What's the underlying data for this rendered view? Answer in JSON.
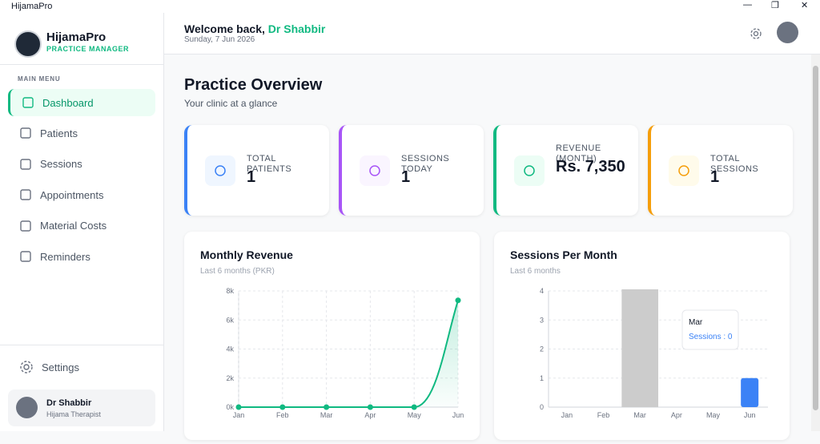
{
  "window": {
    "title": "HijamaPro"
  },
  "sidebar": {
    "brand": "HijamaPro",
    "tagline": "PRACTICE MANAGER",
    "menu_label": "MAIN MENU",
    "menu": [
      "Dashboard",
      "Patients",
      "Sessions",
      "Appointments",
      "Material Costs",
      "Reminders"
    ],
    "settings": "Settings",
    "user": {
      "name": "Dr Shabbir",
      "role": "Hijama Therapist"
    }
  },
  "header": {
    "greeting": "Welcome back,",
    "name": "Dr Shabbir",
    "date": "Sunday, 7 Jun 2026"
  },
  "page": {
    "title": "Practice Overview",
    "subtitle": "Your clinic at a glance"
  },
  "stats": [
    {
      "label": "TOTAL PATIENTS",
      "value": 1
    },
    {
      "label": "SESSIONS TODAY",
      "value": 1
    },
    {
      "label": "REVENUE (MONTH)",
      "value": "Rs. 7,350"
    },
    {
      "label": "TOTAL SESSIONS",
      "value": 1
    }
  ],
  "chart_data": [
    {
      "type": "line",
      "title": "Monthly Revenue",
      "subtitle": "Last 6 months (PKR)",
      "categories": [
        "Jan",
        "Feb",
        "Mar",
        "Apr",
        "May",
        "Jun"
      ],
      "values": [
        0,
        0,
        0,
        0,
        0,
        7350
      ],
      "color": "#10b981",
      "ylim": [
        0,
        8000
      ],
      "yticks": [
        {
          "value": 0,
          "label": "0k"
        },
        {
          "value": 2000,
          "label": "2k"
        },
        {
          "value": 4000,
          "label": "4k"
        },
        {
          "value": 6000,
          "label": "6k"
        },
        {
          "value": 8000,
          "label": "8k"
        }
      ],
      "grid": true
    },
    {
      "type": "bar",
      "title": "Sessions Per Month",
      "subtitle": "Last 6 months",
      "categories": [
        "Jan",
        "Feb",
        "Mar",
        "Apr",
        "May",
        "Jun"
      ],
      "series": [
        {
          "name": "Sessions",
          "color": "#3b82f6",
          "values": [
            0,
            0,
            0,
            0,
            0,
            1
          ]
        }
      ],
      "ylim": [
        0,
        4
      ],
      "yticks": [
        0,
        1,
        2,
        3,
        4
      ],
      "grid": true,
      "tooltip_separator": " : "
    }
  ]
}
